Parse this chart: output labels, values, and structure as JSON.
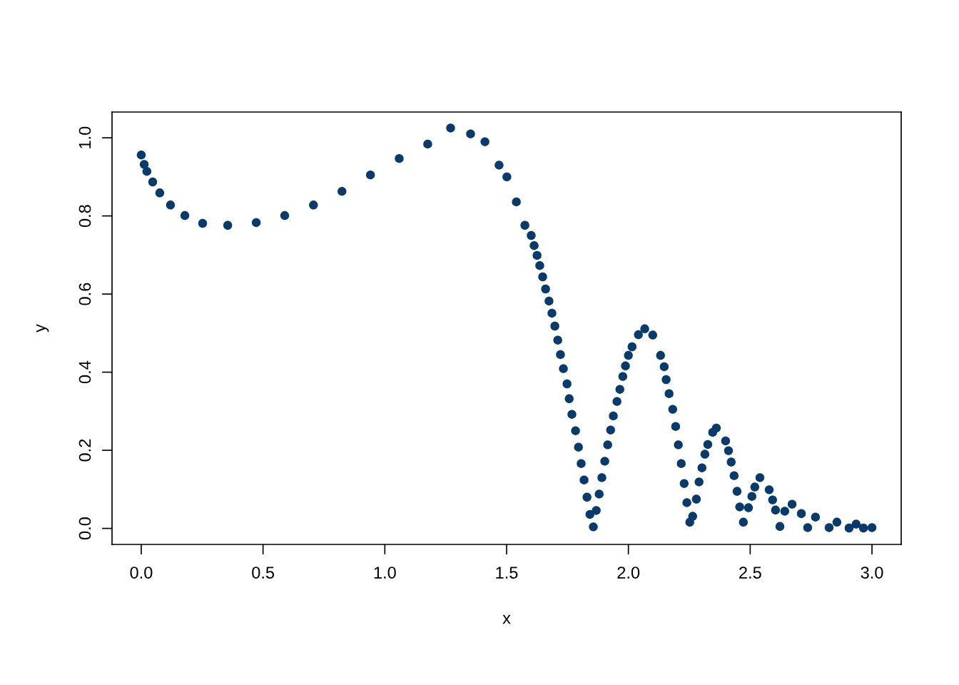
{
  "chart_data": {
    "type": "scatter",
    "xlabel": "x",
    "ylabel": "y",
    "color": "#083b6b",
    "marker": "circle",
    "grid": false,
    "xlim": [
      -0.12,
      3.12
    ],
    "ylim": [
      -0.041,
      1.066
    ],
    "xticks": [
      {
        "value": 0,
        "label": "0.0"
      },
      {
        "value": 0.5,
        "label": "0.5"
      },
      {
        "value": 1,
        "label": "1.0"
      },
      {
        "value": 1.5,
        "label": "1.5"
      },
      {
        "value": 2,
        "label": "2.0"
      },
      {
        "value": 2.5,
        "label": "2.5"
      },
      {
        "value": 3,
        "label": "3.0"
      }
    ],
    "yticks": [
      {
        "value": 0,
        "label": "0.0"
      },
      {
        "value": 0.2,
        "label": "0.2"
      },
      {
        "value": 0.4,
        "label": "0.4"
      },
      {
        "value": 0.6,
        "label": "0.6"
      },
      {
        "value": 0.8,
        "label": "0.8"
      },
      {
        "value": 1,
        "label": "1.0"
      }
    ],
    "x": [
      0.0,
      0.012,
      0.023,
      0.047,
      0.076,
      0.12,
      0.179,
      0.252,
      0.355,
      0.472,
      0.589,
      0.707,
      0.824,
      0.941,
      1.059,
      1.176,
      1.27,
      1.352,
      1.411,
      1.469,
      1.501,
      1.54,
      1.575,
      1.601,
      1.613,
      1.625,
      1.636,
      1.648,
      1.66,
      1.674,
      1.686,
      1.698,
      1.71,
      1.721,
      1.733,
      1.748,
      1.757,
      1.768,
      1.783,
      1.795,
      1.806,
      1.818,
      1.83,
      1.842,
      1.856,
      1.868,
      1.88,
      1.891,
      1.903,
      1.915,
      1.927,
      1.938,
      1.953,
      1.965,
      1.977,
      1.988,
      2.0,
      2.015,
      2.041,
      2.067,
      2.1,
      2.132,
      2.147,
      2.155,
      2.167,
      2.182,
      2.194,
      2.205,
      2.217,
      2.229,
      2.24,
      2.252,
      2.264,
      2.279,
      2.29,
      2.302,
      2.314,
      2.326,
      2.346,
      2.361,
      2.399,
      2.411,
      2.422,
      2.434,
      2.446,
      2.457,
      2.472,
      2.493,
      2.507,
      2.519,
      2.54,
      2.578,
      2.592,
      2.604,
      2.622,
      2.642,
      2.672,
      2.71,
      2.736,
      2.768,
      2.824,
      2.856,
      2.906,
      2.935,
      2.965,
      3.0
    ],
    "values": [
      0.956,
      0.932,
      0.914,
      0.887,
      0.859,
      0.828,
      0.801,
      0.781,
      0.776,
      0.783,
      0.801,
      0.828,
      0.863,
      0.905,
      0.947,
      0.984,
      1.025,
      1.01,
      0.99,
      0.93,
      0.9,
      0.836,
      0.776,
      0.75,
      0.724,
      0.699,
      0.673,
      0.644,
      0.613,
      0.582,
      0.551,
      0.518,
      0.482,
      0.445,
      0.409,
      0.37,
      0.332,
      0.292,
      0.25,
      0.208,
      0.166,
      0.124,
      0.08,
      0.036,
      0.004,
      0.046,
      0.088,
      0.13,
      0.172,
      0.214,
      0.252,
      0.288,
      0.325,
      0.356,
      0.389,
      0.416,
      0.443,
      0.465,
      0.496,
      0.511,
      0.495,
      0.443,
      0.414,
      0.381,
      0.345,
      0.305,
      0.261,
      0.214,
      0.166,
      0.115,
      0.066,
      0.016,
      0.031,
      0.075,
      0.119,
      0.155,
      0.19,
      0.215,
      0.246,
      0.257,
      0.224,
      0.199,
      0.17,
      0.135,
      0.095,
      0.055,
      0.016,
      0.053,
      0.082,
      0.106,
      0.13,
      0.099,
      0.073,
      0.047,
      0.005,
      0.044,
      0.062,
      0.038,
      0.002,
      0.029,
      0.002,
      0.016,
      0.001,
      0.011,
      0.001,
      0.002
    ]
  }
}
